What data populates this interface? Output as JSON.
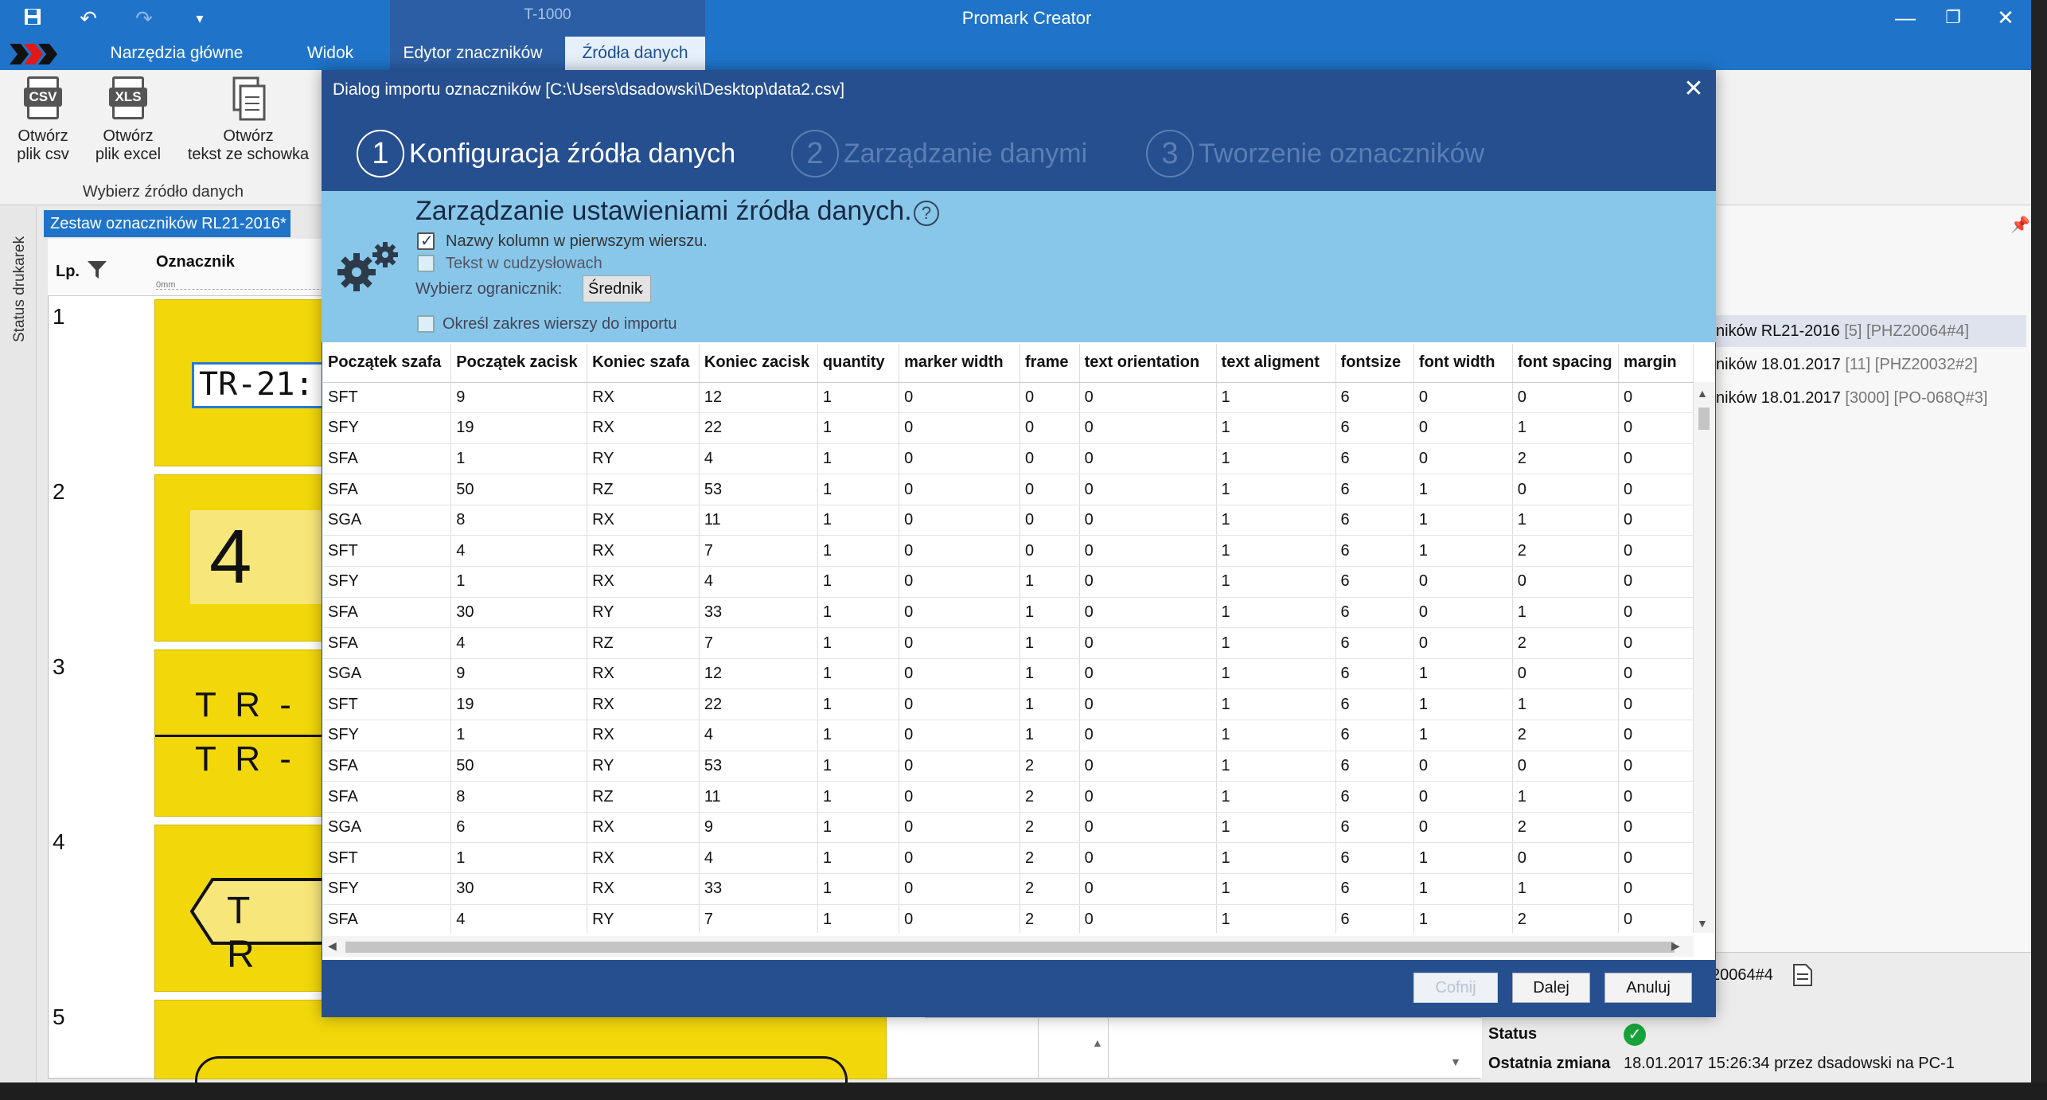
{
  "titlebar": {
    "app_title": "Promark Creator",
    "context_group": "T-1000",
    "tabs": [
      "Narzędzia główne",
      "Widok",
      "Edytor znaczników",
      "Źródła danych"
    ],
    "accent": "#1f74c9"
  },
  "ribbon": {
    "buttons": [
      {
        "icon": "csv-file-icon",
        "tag": "CSV",
        "label_1": "Otwórz",
        "label_2": "plik csv"
      },
      {
        "icon": "xls-file-icon",
        "tag": "XLS",
        "label_1": "Otwórz",
        "label_2": "plik excel"
      },
      {
        "icon": "clipboard-icon",
        "label_1": "Otwórz",
        "label_2": "tekst ze schowka"
      }
    ],
    "group_label": "Wybierz źródło danych"
  },
  "sidebar": {
    "status_label": "Status drukarek"
  },
  "document": {
    "tab_label": "Zestaw oznaczników RL21-2016*",
    "col_lp": "Lp.",
    "col_marker": "Oznacznik",
    "ruler_zero": "0mm",
    "rows": [
      {
        "num": "1",
        "preview": "TR-21:"
      },
      {
        "num": "2",
        "preview": "4"
      },
      {
        "num": "3",
        "preview_a": "T R -",
        "preview_b": "T R -"
      },
      {
        "num": "4",
        "preview": "T R"
      },
      {
        "num": "5",
        "preview": ""
      }
    ]
  },
  "right_panel": {
    "items": [
      {
        "name": "ników RL21-2016",
        "count": "[5]",
        "code": "[PHZ20064#4]"
      },
      {
        "name": "ników 18.01.2017",
        "count": "[11]",
        "code": "[PHZ20032#2]"
      },
      {
        "name": "ników 18.01.2017",
        "count": "[3000]",
        "code": "[PO-068Q#3]"
      }
    ],
    "code_short": "20064#4",
    "status_label": "Status",
    "change_label": "Ostatnia zmiana",
    "change_value": "18.01.2017 15:26:34 przez dsadowski na PC-1"
  },
  "dialog": {
    "title": "Dialog importu oznaczników [C:\\Users\\dsadowski\\Desktop\\data2.csv]",
    "steps": [
      {
        "num": "1",
        "label": "Konfiguracja źródła danych"
      },
      {
        "num": "2",
        "label": "Zarządzanie danymi"
      },
      {
        "num": "3",
        "label": "Tworzenie oznaczników"
      }
    ],
    "config": {
      "title": "Zarządzanie ustawieniami źródła danych.",
      "help": "?",
      "colnames_label": "Nazwy kolumn w pierwszym wierszu.",
      "colnames_checked": true,
      "quotes_label": "Tekst w cudzysłowach",
      "quotes_checked": false,
      "delim_label": "Wybierz ogranicznik:",
      "delim_value": "Średnik",
      "range_label": "Określ zakres wierszy do importu",
      "range_checked": false
    },
    "table": {
      "columns": [
        "Początek szafa",
        "Początek zacisk",
        "Koniec szafa",
        "Koniec zacisk",
        "quantity",
        "marker width",
        "frame",
        "text orientation",
        "text aligment",
        "fontsize",
        "font width",
        "font spacing",
        "margin"
      ],
      "rows": [
        [
          "SFT",
          "9",
          "RX",
          "12",
          "1",
          "0",
          "0",
          "0",
          "1",
          "6",
          "0",
          "0",
          "0"
        ],
        [
          "SFY",
          "19",
          "RX",
          "22",
          "1",
          "0",
          "0",
          "0",
          "1",
          "6",
          "0",
          "1",
          "0"
        ],
        [
          "SFA",
          "1",
          "RY",
          "4",
          "1",
          "0",
          "0",
          "0",
          "1",
          "6",
          "0",
          "2",
          "0"
        ],
        [
          "SFA",
          "50",
          "RZ",
          "53",
          "1",
          "0",
          "0",
          "0",
          "1",
          "6",
          "1",
          "0",
          "0"
        ],
        [
          "SGA",
          "8",
          "RX",
          "11",
          "1",
          "0",
          "0",
          "0",
          "1",
          "6",
          "1",
          "1",
          "0"
        ],
        [
          "SFT",
          "4",
          "RX",
          "7",
          "1",
          "0",
          "0",
          "0",
          "1",
          "6",
          "1",
          "2",
          "0"
        ],
        [
          "SFY",
          "1",
          "RX",
          "4",
          "1",
          "0",
          "1",
          "0",
          "1",
          "6",
          "0",
          "0",
          "0"
        ],
        [
          "SFA",
          "30",
          "RY",
          "33",
          "1",
          "0",
          "1",
          "0",
          "1",
          "6",
          "0",
          "1",
          "0"
        ],
        [
          "SFA",
          "4",
          "RZ",
          "7",
          "1",
          "0",
          "1",
          "0",
          "1",
          "6",
          "0",
          "2",
          "0"
        ],
        [
          "SGA",
          "9",
          "RX",
          "12",
          "1",
          "0",
          "1",
          "0",
          "1",
          "6",
          "1",
          "0",
          "0"
        ],
        [
          "SFT",
          "19",
          "RX",
          "22",
          "1",
          "0",
          "1",
          "0",
          "1",
          "6",
          "1",
          "1",
          "0"
        ],
        [
          "SFY",
          "1",
          "RX",
          "4",
          "1",
          "0",
          "1",
          "0",
          "1",
          "6",
          "1",
          "2",
          "0"
        ],
        [
          "SFA",
          "50",
          "RY",
          "53",
          "1",
          "0",
          "2",
          "0",
          "1",
          "6",
          "0",
          "0",
          "0"
        ],
        [
          "SFA",
          "8",
          "RZ",
          "11",
          "1",
          "0",
          "2",
          "0",
          "1",
          "6",
          "0",
          "1",
          "0"
        ],
        [
          "SGA",
          "6",
          "RX",
          "9",
          "1",
          "0",
          "2",
          "0",
          "1",
          "6",
          "0",
          "2",
          "0"
        ],
        [
          "SFT",
          "1",
          "RX",
          "4",
          "1",
          "0",
          "2",
          "0",
          "1",
          "6",
          "1",
          "0",
          "0"
        ],
        [
          "SFY",
          "30",
          "RX",
          "33",
          "1",
          "0",
          "2",
          "0",
          "1",
          "6",
          "1",
          "1",
          "0"
        ],
        [
          "SFA",
          "4",
          "RY",
          "7",
          "1",
          "0",
          "2",
          "0",
          "1",
          "6",
          "1",
          "2",
          "0"
        ]
      ]
    },
    "buttons": {
      "back": "Cofnij",
      "next": "Dalej",
      "cancel": "Anuluj"
    }
  }
}
